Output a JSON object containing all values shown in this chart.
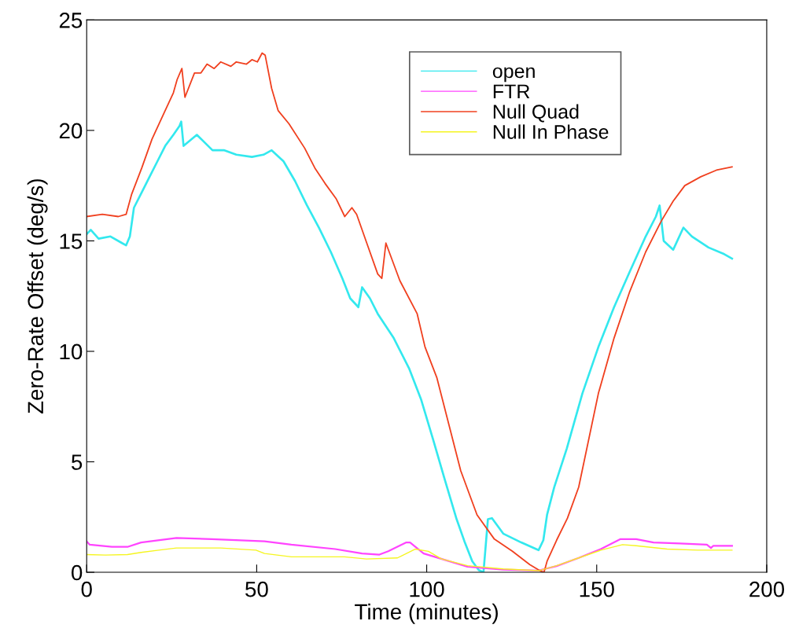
{
  "chart_data": {
    "type": "line",
    "xlabel": "Time (minutes)",
    "ylabel": "Zero-Rate Offset (deg/s)",
    "xlim": [
      0,
      200
    ],
    "ylim": [
      0,
      25
    ],
    "xticks": [
      0,
      50,
      100,
      150,
      200
    ],
    "yticks": [
      0,
      5,
      10,
      15,
      20,
      25
    ],
    "grid": false,
    "legend": "top right",
    "marker": "none",
    "line_style": "solid",
    "series": [
      {
        "name": "open",
        "color": "#33e8ee",
        "x": [
          0,
          1.2,
          3.5,
          7,
          10.4,
          11.6,
          12.7,
          13.9,
          16.2,
          18.5,
          20.8,
          23.1,
          25.5,
          27.3,
          27.8,
          28.5,
          32.4,
          37,
          40.5,
          44,
          48.6,
          52,
          54.4,
          57.9,
          61.3,
          64.8,
          68.3,
          71.8,
          75.2,
          77.5,
          79.9,
          81,
          83.3,
          85.6,
          90.3,
          94.9,
          98.4,
          101.9,
          105.3,
          108.8,
          111.1,
          113.4,
          115.3,
          116.7,
          118,
          119.2,
          122.5,
          127.8,
          132.2,
          132.9,
          134.3,
          135.4,
          137.5,
          141.2,
          145.8,
          150.5,
          155.1,
          159.7,
          164.4,
          167.4,
          168.5,
          169.7,
          172.5,
          175.5,
          178,
          182.9,
          187.5,
          189.8
        ],
        "values": [
          15.3,
          15.5,
          15.1,
          15.2,
          14.9,
          14.8,
          15.2,
          16.5,
          17.2,
          17.9,
          18.6,
          19.3,
          19.8,
          20.2,
          20.4,
          19.3,
          19.8,
          19.1,
          19.1,
          18.9,
          18.8,
          18.9,
          19.1,
          18.6,
          17.7,
          16.6,
          15.6,
          14.5,
          13.3,
          12.4,
          12.0,
          12.9,
          12.4,
          11.7,
          10.6,
          9.2,
          7.8,
          6.0,
          4.2,
          2.4,
          1.4,
          0.5,
          0.1,
          0,
          2.4,
          2.45,
          1.75,
          1.35,
          1.05,
          1.0,
          1.45,
          2.6,
          3.85,
          5.6,
          8.1,
          10.2,
          12.0,
          13.6,
          15.2,
          16.1,
          16.6,
          15.0,
          14.6,
          15.6,
          15.2,
          14.7,
          14.4,
          14.2
        ]
      },
      {
        "name": "FTR",
        "color": "#ff44ff",
        "x": [
          0,
          0.9,
          7.4,
          12,
          16,
          26.4,
          36.8,
          52.3,
          60.2,
          73.1,
          81,
          86.1,
          88.7,
          94,
          95.1,
          99.1,
          105.6,
          112,
          122.5,
          132.9,
          138.2,
          144.7,
          151.2,
          157,
          161.6,
          166.7,
          174.5,
          182.4,
          183.6,
          184.3,
          189.8
        ],
        "values": [
          1.4,
          1.25,
          1.15,
          1.15,
          1.35,
          1.55,
          1.5,
          1.4,
          1.25,
          1.05,
          0.85,
          0.8,
          0.95,
          1.35,
          1.35,
          0.85,
          0.55,
          0.25,
          0.12,
          0.08,
          0.28,
          0.65,
          1.05,
          1.5,
          1.5,
          1.35,
          1.3,
          1.25,
          1.1,
          1.2,
          1.2
        ]
      },
      {
        "name": "Null Quad",
        "color": "#f0401f",
        "x": [
          0,
          4.6,
          9.3,
          11.6,
          13.2,
          16.2,
          19.2,
          22.5,
          25.5,
          26.6,
          28,
          28.9,
          31.7,
          33.6,
          35.4,
          37.5,
          39.4,
          42.4,
          44,
          47,
          48.6,
          50.2,
          51.6,
          52.5,
          54.4,
          56.3,
          59.5,
          64.1,
          67.1,
          70.1,
          73.4,
          75.9,
          78,
          79.4,
          82.6,
          85.6,
          86.8,
          88,
          92.1,
          97.2,
          99.5,
          103,
          106.5,
          110,
          114.8,
          119.9,
          125.2,
          130.3,
          133.3,
          134.5,
          135.4,
          138.2,
          141.4,
          144.7,
          150.5,
          155.1,
          159.7,
          164.4,
          169,
          172.5,
          175.9,
          180.6,
          185.2,
          189.8
        ],
        "values": [
          16.1,
          16.2,
          16.1,
          16.2,
          17.1,
          18.3,
          19.6,
          20.7,
          21.7,
          22.3,
          22.8,
          21.5,
          22.6,
          22.6,
          23.0,
          22.8,
          23.1,
          22.9,
          23.1,
          23.0,
          23.2,
          23.1,
          23.5,
          23.4,
          21.9,
          20.9,
          20.3,
          19.2,
          18.3,
          17.6,
          16.9,
          16.1,
          16.5,
          16.2,
          14.8,
          13.5,
          13.3,
          14.9,
          13.2,
          11.7,
          10.2,
          8.8,
          6.7,
          4.6,
          2.6,
          1.5,
          0.95,
          0.35,
          0.07,
          0,
          0.5,
          1.45,
          2.45,
          3.85,
          8.1,
          10.6,
          12.7,
          14.5,
          15.9,
          16.8,
          17.5,
          17.9,
          18.2,
          18.35
        ]
      },
      {
        "name": "Null In Phase",
        "color": "#f5f520",
        "x": [
          0,
          5.5,
          12,
          16,
          21.2,
          26.4,
          39.4,
          49.8,
          52.3,
          60.2,
          75.8,
          82.3,
          91.4,
          96.6,
          100.5,
          104.4,
          112,
          122.5,
          132.9,
          138.2,
          144.7,
          151.2,
          157.6,
          161.6,
          170.7,
          179.8,
          187.7,
          189.8
        ],
        "values": [
          0.8,
          0.78,
          0.8,
          0.9,
          1.0,
          1.1,
          1.1,
          1.0,
          0.85,
          0.7,
          0.7,
          0.6,
          0.65,
          1.05,
          0.95,
          0.6,
          0.3,
          0.15,
          0.07,
          0.3,
          0.65,
          1.0,
          1.25,
          1.2,
          1.05,
          1.0,
          1.0,
          1.0
        ]
      }
    ]
  }
}
